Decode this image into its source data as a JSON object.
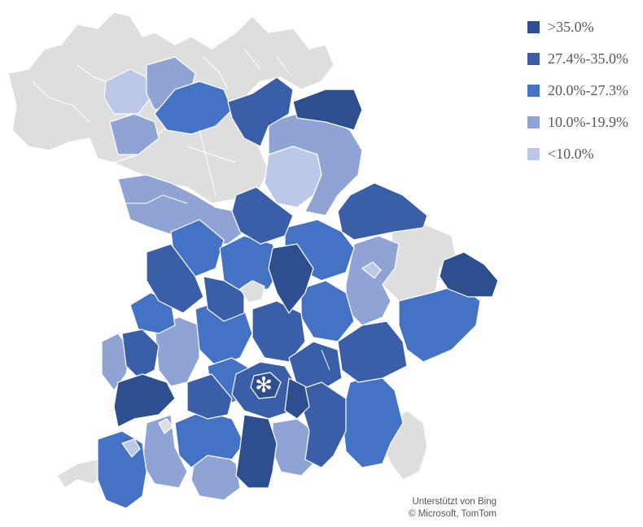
{
  "legend": {
    "items": [
      {
        "label": ">35.0%",
        "color": "#2e4f8f"
      },
      {
        "label": "27.4%-35.0%",
        "color": "#3a5fa8"
      },
      {
        "label": "20.0%-27.3%",
        "color": "#4472c4"
      },
      {
        "label": "10.0%-19.9%",
        "color": "#8fa3d4"
      },
      {
        "label": "<10.0%",
        "color": "#bcc8e8"
      }
    ]
  },
  "no_data_color": "#dedede",
  "marker": {
    "icon": "asterisk-icon",
    "glyph": "✻"
  },
  "attribution": {
    "line1": "Unterstützt von Bing",
    "line2": "© Microsoft, TomTom"
  }
}
